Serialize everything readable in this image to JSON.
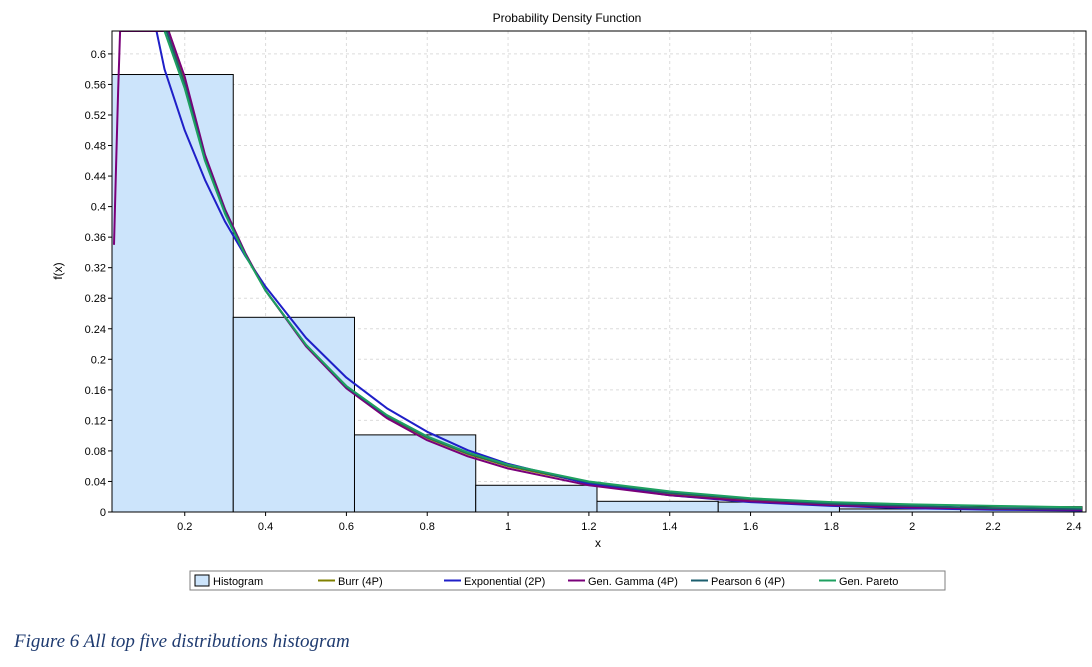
{
  "chart_data": {
    "type": "histogram",
    "title": "Probability Density Function",
    "xlabel": "x",
    "ylabel": "f(x)",
    "xlim": [
      0.02,
      2.43
    ],
    "ylim": [
      0,
      0.63
    ],
    "x_ticks": [
      "0.2",
      "0.4",
      "0.6",
      "0.8",
      "1",
      "1.2",
      "1.4",
      "1.6",
      "1.8",
      "2",
      "2.2",
      "2.4"
    ],
    "x_tick_values": [
      0.2,
      0.4,
      0.6,
      0.8,
      1.0,
      1.2,
      1.4,
      1.6,
      1.8,
      2.0,
      2.2,
      2.4
    ],
    "y_ticks": [
      "0",
      "0.04",
      "0.08",
      "0.12",
      "0.16",
      "0.2",
      "0.24",
      "0.28",
      "0.32",
      "0.36",
      "0.4",
      "0.44",
      "0.48",
      "0.52",
      "0.56",
      "0.6"
    ],
    "y_tick_values": [
      0,
      0.04,
      0.08,
      0.12,
      0.16,
      0.2,
      0.24,
      0.28,
      0.32,
      0.36,
      0.4,
      0.44,
      0.48,
      0.52,
      0.56,
      0.6
    ],
    "grid": true,
    "legend_position": "bottom",
    "histogram": {
      "name": "Histogram",
      "color": "#cce4fb",
      "bins": [
        {
          "x0": 0.02,
          "x1": 0.32,
          "value": 0.573
        },
        {
          "x0": 0.32,
          "x1": 0.62,
          "value": 0.255
        },
        {
          "x0": 0.62,
          "x1": 0.92,
          "value": 0.101
        },
        {
          "x0": 0.92,
          "x1": 1.22,
          "value": 0.035
        },
        {
          "x0": 1.22,
          "x1": 1.52,
          "value": 0.014
        },
        {
          "x0": 1.52,
          "x1": 1.82,
          "value": 0.013
        },
        {
          "x0": 1.82,
          "x1": 2.12,
          "value": 0.004
        },
        {
          "x0": 2.12,
          "x1": 2.42,
          "value": 0.007
        }
      ]
    },
    "series": [
      {
        "name": "Burr (4P)",
        "color": "#808000",
        "x": [
          0.16,
          0.2,
          0.25,
          0.3,
          0.35,
          0.4,
          0.5,
          0.6,
          0.7,
          0.8,
          0.9,
          1.0,
          1.2,
          1.4,
          1.6,
          1.8,
          2.0,
          2.2,
          2.42
        ],
        "y": [
          0.63,
          0.565,
          0.465,
          0.395,
          0.338,
          0.29,
          0.218,
          0.163,
          0.125,
          0.097,
          0.076,
          0.06,
          0.038,
          0.024,
          0.016,
          0.011,
          0.007,
          0.005,
          0.003
        ]
      },
      {
        "name": "Exponential (2P)",
        "color": "#1f1fc8",
        "x": [
          0.13,
          0.15,
          0.2,
          0.25,
          0.3,
          0.35,
          0.4,
          0.5,
          0.6,
          0.7,
          0.8,
          0.9,
          1.0,
          1.2,
          1.4,
          1.6,
          1.8,
          2.0,
          2.2,
          2.42
        ],
        "y": [
          0.63,
          0.58,
          0.5,
          0.435,
          0.38,
          0.335,
          0.295,
          0.228,
          0.176,
          0.136,
          0.105,
          0.081,
          0.063,
          0.037,
          0.022,
          0.013,
          0.008,
          0.005,
          0.003,
          0.002
        ]
      },
      {
        "name": "Gen. Gamma (4P)",
        "color": "#7a007a",
        "x": [
          0.025,
          0.03,
          0.035,
          0.04,
          0.16,
          0.2,
          0.25,
          0.3,
          0.35,
          0.4,
          0.5,
          0.6,
          0.7,
          0.8,
          0.9,
          1.0,
          1.2,
          1.4,
          1.6,
          1.8,
          2.0,
          2.2,
          2.42
        ],
        "y": [
          0.35,
          0.45,
          0.55,
          0.63,
          0.63,
          0.57,
          0.468,
          0.396,
          0.339,
          0.29,
          0.217,
          0.162,
          0.123,
          0.094,
          0.073,
          0.057,
          0.035,
          0.022,
          0.014,
          0.009,
          0.006,
          0.004,
          0.003
        ]
      },
      {
        "name": "Pearson 6 (4P)",
        "color": "#1b5e6e",
        "x": [
          0.155,
          0.2,
          0.25,
          0.3,
          0.35,
          0.4,
          0.5,
          0.6,
          0.7,
          0.8,
          0.9,
          1.0,
          1.2,
          1.4,
          1.6,
          1.8,
          2.0,
          2.2,
          2.42
        ],
        "y": [
          0.63,
          0.56,
          0.462,
          0.392,
          0.337,
          0.29,
          0.219,
          0.164,
          0.126,
          0.098,
          0.077,
          0.061,
          0.039,
          0.025,
          0.017,
          0.011,
          0.008,
          0.005,
          0.004
        ]
      },
      {
        "name": "Gen. Pareto",
        "color": "#1ea060",
        "x": [
          0.15,
          0.2,
          0.25,
          0.3,
          0.35,
          0.4,
          0.5,
          0.6,
          0.7,
          0.8,
          0.9,
          1.0,
          1.2,
          1.4,
          1.6,
          1.8,
          2.0,
          2.2,
          2.42
        ],
        "y": [
          0.63,
          0.555,
          0.46,
          0.39,
          0.336,
          0.29,
          0.219,
          0.165,
          0.127,
          0.099,
          0.078,
          0.062,
          0.04,
          0.027,
          0.018,
          0.013,
          0.01,
          0.008,
          0.006
        ]
      }
    ]
  },
  "caption": "Figure 6 All top five distributions histogram"
}
